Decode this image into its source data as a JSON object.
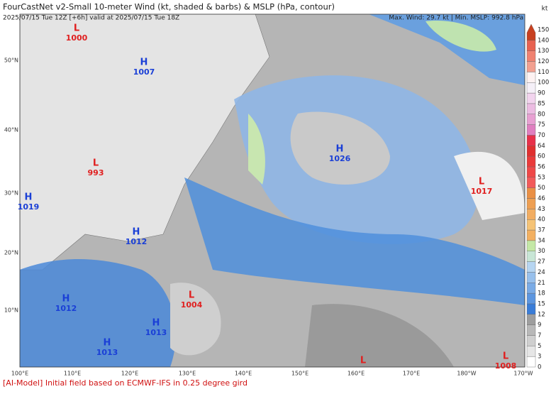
{
  "header": {
    "title": "FourCastNet v2-Small 10-meter Wind (kt, shaded & barbs) & MSLP (hPa, contour)",
    "subtitle": "2025/07/15 Tue 12Z [+6h] valid at 2025/07/15 Tue 18Z",
    "stats": "Max. Wind: 29.7 kt | Min. MSLP: 992.8 hPa"
  },
  "map": {
    "lat_labels": [
      "50°N",
      "40°N",
      "30°N",
      "20°N",
      "10°N"
    ],
    "lon_labels": [
      "100°E",
      "110°E",
      "120°E",
      "130°E",
      "140°E",
      "150°E",
      "160°E",
      "170°E",
      "180°W",
      "170°W"
    ],
    "centers": [
      {
        "letter": "L",
        "pressure": "1000"
      },
      {
        "letter": "H",
        "pressure": "1007"
      },
      {
        "letter": "L",
        "pressure": "993"
      },
      {
        "letter": "H",
        "pressure": "1019"
      },
      {
        "letter": "H",
        "pressure": "1012"
      },
      {
        "letter": "H",
        "pressure": "1026"
      },
      {
        "letter": "L",
        "pressure": "1017"
      },
      {
        "letter": "H",
        "pressure": "1012"
      },
      {
        "letter": "L",
        "pressure": "1004"
      },
      {
        "letter": "H",
        "pressure": "1013"
      },
      {
        "letter": "H",
        "pressure": "1013"
      },
      {
        "letter": "L"
      },
      {
        "letter": "L",
        "pressure": "1008"
      }
    ]
  },
  "colorbar": {
    "unit": "kt",
    "levels": [
      0,
      3,
      5,
      7,
      9,
      12,
      15,
      18,
      21,
      24,
      27,
      30,
      34,
      37,
      40,
      43,
      46,
      50,
      53,
      56,
      60,
      64,
      70,
      75,
      80,
      85,
      90,
      100,
      110,
      120,
      130,
      140,
      150
    ],
    "colors": [
      "#ffffff",
      "#e6e6e6",
      "#cfcfcf",
      "#b8b8b8",
      "#9e9e9e",
      "#3a7dd8",
      "#5c96e0",
      "#7aabe6",
      "#98c0ec",
      "#b6d5f1",
      "#c8e6d6",
      "#c4e8a6",
      "#f3b061",
      "#f5c376",
      "#f2ad62",
      "#ee9f52",
      "#ea9045",
      "#f25a5a",
      "#ef4848",
      "#ea3a3a",
      "#e02f2f",
      "#e8304a",
      "#e07fc0",
      "#e8a0d2",
      "#ecbce2",
      "#f2d4ee",
      "#f5f0f8",
      "#fdf2f2",
      "#f2a090",
      "#f08270",
      "#e86250",
      "#c84020"
    ]
  },
  "footer": "[AI-Model] Initial field based on ECMWF-IFS in 0.25 degree gird"
}
